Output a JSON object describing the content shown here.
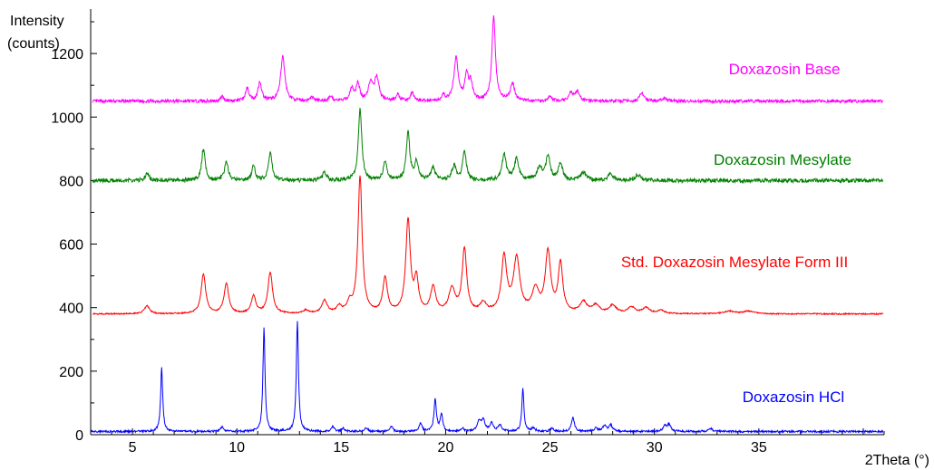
{
  "chart_data": {
    "type": "line",
    "xlabel": "2Theta (°)",
    "ylabel_line1": "Intensity",
    "ylabel_line2": "(counts)",
    "xlim": [
      3,
      41
    ],
    "ylim": [
      0,
      1340
    ],
    "x_ticks": [
      5,
      10,
      15,
      20,
      25,
      30,
      35
    ],
    "y_ticks": [
      0,
      200,
      400,
      600,
      800,
      1000,
      1200
    ],
    "grid": false,
    "series": [
      {
        "name": "Doxazosin Base",
        "color": "#ff00ff",
        "baseline": 1050,
        "noise": 5,
        "peaks": [
          [
            9.3,
            14,
            0.1
          ],
          [
            10.5,
            40,
            0.1
          ],
          [
            11.1,
            60,
            0.1
          ],
          [
            12.2,
            140,
            0.12
          ],
          [
            13.6,
            12,
            0.1
          ],
          [
            14.5,
            15,
            0.1
          ],
          [
            15.5,
            40,
            0.1
          ],
          [
            15.8,
            55,
            0.1
          ],
          [
            16.4,
            55,
            0.12
          ],
          [
            16.7,
            75,
            0.12
          ],
          [
            17.7,
            20,
            0.1
          ],
          [
            18.4,
            25,
            0.1
          ],
          [
            19.9,
            15,
            0.1
          ],
          [
            20.5,
            135,
            0.12
          ],
          [
            21.0,
            80,
            0.1
          ],
          [
            21.2,
            55,
            0.1
          ],
          [
            22.3,
            265,
            0.1
          ],
          [
            23.2,
            55,
            0.12
          ],
          [
            25.0,
            15,
            0.1
          ],
          [
            26.0,
            25,
            0.12
          ],
          [
            26.3,
            30,
            0.12
          ],
          [
            29.4,
            25,
            0.12
          ],
          [
            30.5,
            8,
            0.15
          ]
        ]
      },
      {
        "name": "Doxazosin Mesylate",
        "color": "#008000",
        "baseline": 800,
        "noise": 6,
        "peaks": [
          [
            5.7,
            20,
            0.12
          ],
          [
            8.4,
            100,
            0.1
          ],
          [
            9.5,
            60,
            0.1
          ],
          [
            10.8,
            45,
            0.1
          ],
          [
            11.6,
            90,
            0.1
          ],
          [
            14.2,
            25,
            0.12
          ],
          [
            15.9,
            225,
            0.1
          ],
          [
            17.1,
            60,
            0.1
          ],
          [
            18.2,
            150,
            0.1
          ],
          [
            18.6,
            60,
            0.1
          ],
          [
            19.4,
            40,
            0.12
          ],
          [
            20.4,
            45,
            0.12
          ],
          [
            20.9,
            95,
            0.1
          ],
          [
            22.8,
            80,
            0.12
          ],
          [
            23.4,
            70,
            0.12
          ],
          [
            24.5,
            40,
            0.15
          ],
          [
            24.9,
            75,
            0.12
          ],
          [
            25.5,
            55,
            0.12
          ],
          [
            26.6,
            25,
            0.15
          ],
          [
            27.9,
            20,
            0.15
          ],
          [
            29.2,
            18,
            0.15
          ]
        ]
      },
      {
        "name": "Std. Doxazosin Mesylate Form III",
        "color": "#ff0000",
        "baseline": 380,
        "noise": 2,
        "peaks": [
          [
            5.7,
            25,
            0.15
          ],
          [
            8.4,
            125,
            0.13
          ],
          [
            9.5,
            95,
            0.13
          ],
          [
            10.8,
            55,
            0.13
          ],
          [
            11.6,
            130,
            0.13
          ],
          [
            13.3,
            10,
            0.15
          ],
          [
            14.2,
            40,
            0.15
          ],
          [
            14.9,
            20,
            0.15
          ],
          [
            15.4,
            30,
            0.13
          ],
          [
            15.9,
            430,
            0.12
          ],
          [
            17.1,
            110,
            0.13
          ],
          [
            18.2,
            290,
            0.13
          ],
          [
            18.6,
            100,
            0.12
          ],
          [
            19.4,
            80,
            0.15
          ],
          [
            20.3,
            75,
            0.18
          ],
          [
            20.9,
            200,
            0.13
          ],
          [
            21.8,
            30,
            0.18
          ],
          [
            22.8,
            175,
            0.15
          ],
          [
            23.4,
            170,
            0.18
          ],
          [
            24.3,
            70,
            0.2
          ],
          [
            24.9,
            190,
            0.15
          ],
          [
            25.5,
            155,
            0.13
          ],
          [
            26.6,
            35,
            0.2
          ],
          [
            27.2,
            25,
            0.2
          ],
          [
            28.0,
            25,
            0.2
          ],
          [
            28.9,
            20,
            0.2
          ],
          [
            29.6,
            18,
            0.2
          ],
          [
            30.3,
            10,
            0.2
          ],
          [
            33.6,
            8,
            0.3
          ],
          [
            34.5,
            8,
            0.3
          ]
        ]
      },
      {
        "name": "Doxazosin HCl",
        "color": "#0000ff",
        "baseline": 10,
        "noise": 3,
        "peaks": [
          [
            6.4,
            200,
            0.06
          ],
          [
            9.3,
            15,
            0.08
          ],
          [
            11.3,
            325,
            0.06
          ],
          [
            12.9,
            350,
            0.06
          ],
          [
            14.6,
            15,
            0.08
          ],
          [
            15.1,
            10,
            0.08
          ],
          [
            16.2,
            12,
            0.08
          ],
          [
            17.4,
            15,
            0.08
          ],
          [
            18.8,
            25,
            0.08
          ],
          [
            19.5,
            100,
            0.07
          ],
          [
            19.8,
            55,
            0.07
          ],
          [
            20.8,
            10,
            0.08
          ],
          [
            21.6,
            30,
            0.1
          ],
          [
            21.8,
            35,
            0.1
          ],
          [
            22.2,
            25,
            0.1
          ],
          [
            22.6,
            20,
            0.1
          ],
          [
            23.7,
            135,
            0.06
          ],
          [
            24.2,
            10,
            0.1
          ],
          [
            25.1,
            10,
            0.1
          ],
          [
            26.1,
            45,
            0.08
          ],
          [
            27.2,
            10,
            0.1
          ],
          [
            27.6,
            18,
            0.1
          ],
          [
            27.9,
            20,
            0.1
          ],
          [
            30.5,
            18,
            0.1
          ],
          [
            30.7,
            20,
            0.1
          ],
          [
            32.7,
            10,
            0.1
          ]
        ]
      }
    ]
  }
}
